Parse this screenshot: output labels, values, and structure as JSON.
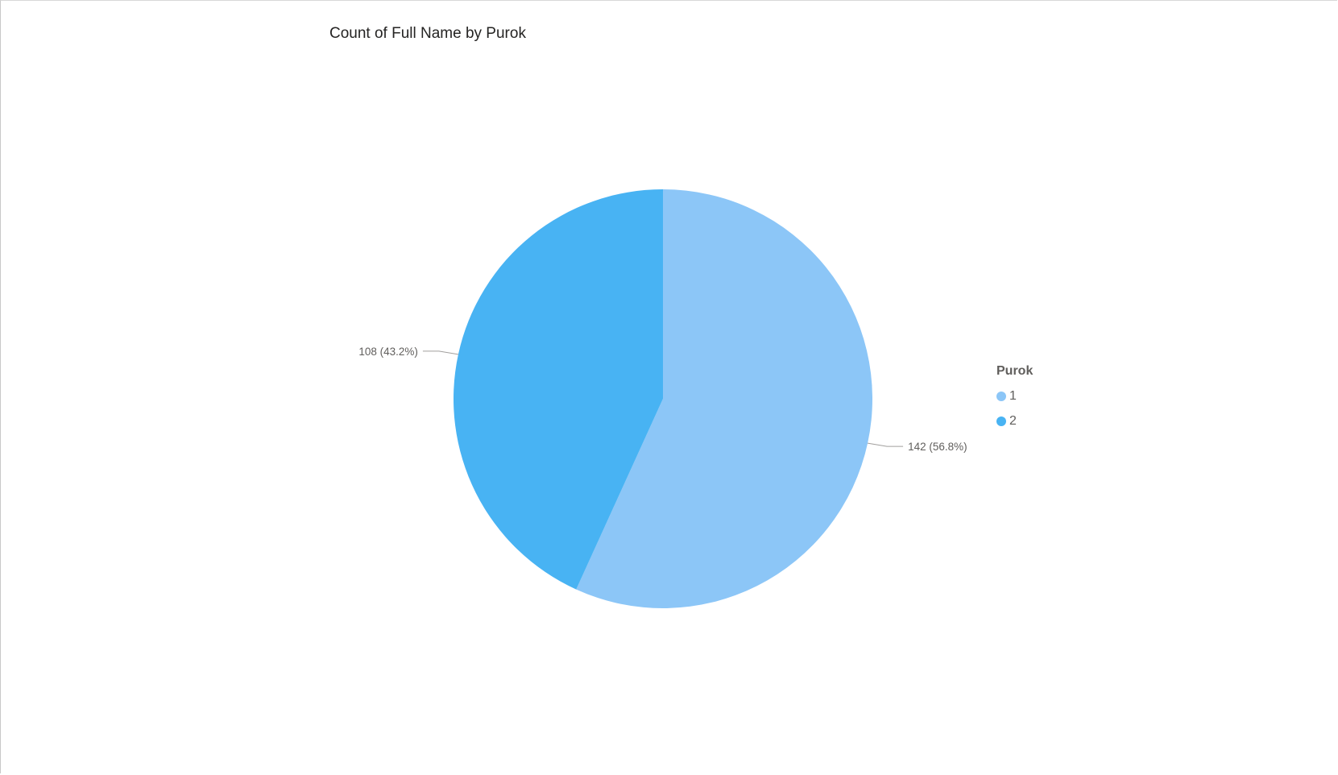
{
  "chart_data": {
    "type": "pie",
    "title": "Count of Full Name by Purok",
    "legend_title": "Purok",
    "legend_position": "right",
    "slices": [
      {
        "name": "1",
        "value": 142,
        "percent": 56.8,
        "color": "#8cc6f7",
        "label": "142 (56.8%)"
      },
      {
        "name": "2",
        "value": 108,
        "percent": 43.2,
        "color": "#48b3f3",
        "label": "108 (43.2%)"
      }
    ]
  }
}
